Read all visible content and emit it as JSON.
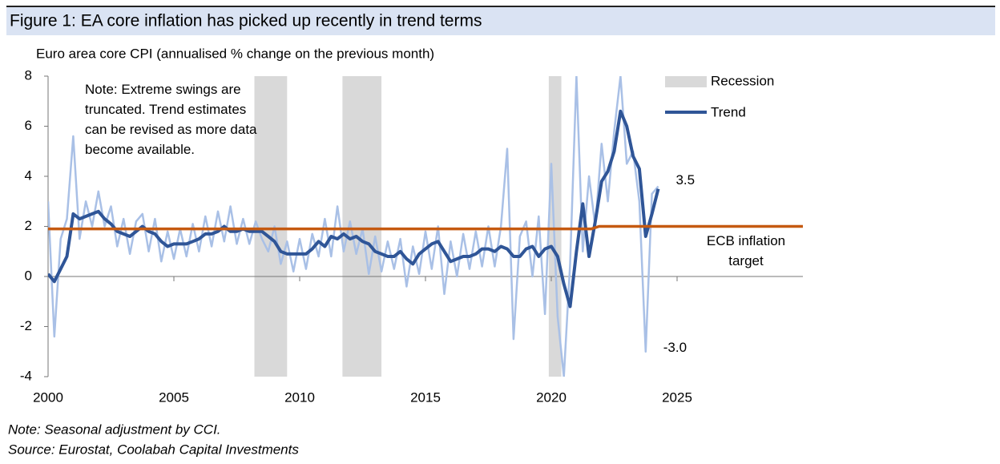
{
  "chart_data": {
    "type": "line",
    "title": "Figure 1: EA core inflation has picked up recently in trend terms",
    "ylabel": "Euro area core CPI (annualised % change on the previous month)",
    "note": "Note: Extreme swings are truncated. Trend estimates can be revised as more data become available.",
    "footnotes": [
      "Note: Seasonal adjustment by CCI.",
      "Source: Eurostat, Coolabah Capital Investments"
    ],
    "xlim": [
      2000,
      2030
    ],
    "xticks": [
      2000,
      2005,
      2010,
      2015,
      2020,
      2025
    ],
    "ylim": [
      -4,
      8
    ],
    "yticks": [
      -4,
      -2,
      0,
      2,
      4,
      6,
      8
    ],
    "recession_label": "Recession",
    "recession_color": "#d9d9d9",
    "recessions": [
      [
        2008.2,
        2009.5
      ],
      [
        2011.7,
        2013.25
      ],
      [
        2019.9,
        2020.4
      ]
    ],
    "x": [
      2000,
      2000.25,
      2000.5,
      2000.75,
      2001,
      2001.25,
      2001.5,
      2001.75,
      2002,
      2002.25,
      2002.5,
      2002.75,
      2003,
      2003.25,
      2003.5,
      2003.75,
      2004,
      2004.25,
      2004.5,
      2004.75,
      2005,
      2005.25,
      2005.5,
      2005.75,
      2006,
      2006.25,
      2006.5,
      2006.75,
      2007,
      2007.25,
      2007.5,
      2007.75,
      2008,
      2008.25,
      2008.5,
      2008.75,
      2009,
      2009.25,
      2009.5,
      2009.75,
      2010,
      2010.25,
      2010.5,
      2010.75,
      2011,
      2011.25,
      2011.5,
      2011.75,
      2012,
      2012.25,
      2012.5,
      2012.75,
      2013,
      2013.25,
      2013.5,
      2013.75,
      2014,
      2014.25,
      2014.5,
      2014.75,
      2015,
      2015.25,
      2015.5,
      2015.75,
      2016,
      2016.25,
      2016.5,
      2016.75,
      2017,
      2017.25,
      2017.5,
      2017.75,
      2018,
      2018.25,
      2018.5,
      2018.75,
      2019,
      2019.25,
      2019.5,
      2019.75,
      2020,
      2020.25,
      2020.5,
      2020.75,
      2021,
      2021.25,
      2021.5,
      2021.75,
      2022,
      2022.25,
      2022.5,
      2022.75,
      2023,
      2023.25,
      2023.5,
      2023.75,
      2024,
      2024.25
    ],
    "series": [
      {
        "color": "#a9c0e6",
        "values": [
          3.0,
          -2.4,
          1.5,
          2.3,
          5.6,
          1.5,
          3.0,
          2.0,
          3.4,
          2.0,
          2.8,
          1.2,
          2.3,
          0.9,
          2.2,
          2.5,
          1.0,
          2.3,
          0.6,
          1.8,
          0.7,
          1.9,
          0.8,
          2.1,
          1.0,
          2.4,
          1.2,
          2.6,
          1.4,
          2.8,
          1.3,
          2.3,
          1.3,
          2.2,
          1.5,
          1.0,
          2.0,
          0.5,
          1.4,
          0.2,
          1.5,
          0.3,
          1.7,
          0.8,
          2.3,
          0.8,
          2.8,
          1.0,
          2.2,
          0.9,
          1.9,
          0.1,
          1.6,
          0.2,
          1.4,
          0.3,
          1.5,
          -0.4,
          1.2,
          0.1,
          1.8,
          0.3,
          2.0,
          -0.7,
          1.4,
          0.0,
          1.7,
          0.3,
          1.8,
          0.4,
          2.0,
          0.4,
          2.0,
          5.1,
          -2.5,
          1.6,
          2.2,
          0.0,
          2.4,
          -1.5,
          4.5,
          -1.6,
          -4.0,
          0.5,
          8.0,
          1.0,
          4.0,
          2.0,
          5.3,
          3.0,
          5.8,
          8.0,
          4.5,
          5.0,
          3.0,
          -3.0,
          3.3,
          3.6
        ],
        "value_labels": [
          null,
          null,
          null,
          null,
          null,
          null,
          null,
          null,
          null,
          null,
          null,
          null,
          null,
          null,
          null,
          null,
          null,
          null,
          null,
          null,
          null,
          null,
          null,
          null,
          null,
          null,
          null,
          null,
          null,
          null,
          null,
          null,
          null,
          null,
          null,
          null,
          null,
          null,
          null,
          null,
          null,
          null,
          null,
          null,
          null,
          null,
          null,
          null,
          null,
          null,
          null,
          null,
          null,
          null,
          null,
          null,
          null,
          null,
          null,
          null,
          null,
          null,
          null,
          null,
          null,
          null,
          null,
          null,
          null,
          null,
          null,
          null,
          null,
          null,
          null,
          null,
          null,
          null,
          null,
          null,
          null,
          null,
          null,
          null,
          null,
          null,
          null,
          null,
          null,
          null,
          null,
          null,
          null,
          null,
          null,
          "-3.0",
          null,
          null
        ]
      },
      {
        "name": "Trend",
        "color": "#2f5597",
        "values": [
          0.1,
          -0.2,
          0.3,
          0.8,
          2.5,
          2.3,
          2.4,
          2.5,
          2.6,
          2.3,
          2.1,
          1.8,
          1.7,
          1.6,
          1.8,
          2.0,
          1.8,
          1.7,
          1.4,
          1.2,
          1.3,
          1.3,
          1.3,
          1.4,
          1.5,
          1.7,
          1.7,
          1.8,
          2.0,
          1.8,
          1.8,
          1.9,
          1.8,
          1.8,
          1.8,
          1.6,
          1.4,
          1.0,
          0.9,
          0.9,
          0.9,
          0.9,
          1.1,
          1.4,
          1.2,
          1.6,
          1.5,
          1.7,
          1.5,
          1.6,
          1.4,
          1.3,
          1.0,
          0.9,
          0.8,
          0.8,
          1.0,
          0.7,
          0.5,
          0.9,
          1.1,
          1.3,
          1.4,
          1.0,
          0.6,
          0.7,
          0.8,
          0.8,
          0.9,
          1.1,
          1.1,
          1.0,
          1.2,
          1.1,
          0.8,
          0.8,
          1.1,
          1.2,
          0.8,
          1.1,
          1.2,
          0.8,
          -0.3,
          -1.2,
          1.0,
          2.9,
          0.8,
          2.2,
          3.8,
          4.2,
          5.0,
          6.6,
          6.0,
          4.8,
          4.3,
          1.6,
          2.5,
          3.5
        ]
      },
      {
        "name": "ECB inflation target",
        "color": "#c55a11",
        "x": [
          2000,
          2021.6,
          2021.9,
          2030
        ],
        "values": [
          1.9,
          1.9,
          2.0,
          2.0
        ]
      }
    ]
  }
}
